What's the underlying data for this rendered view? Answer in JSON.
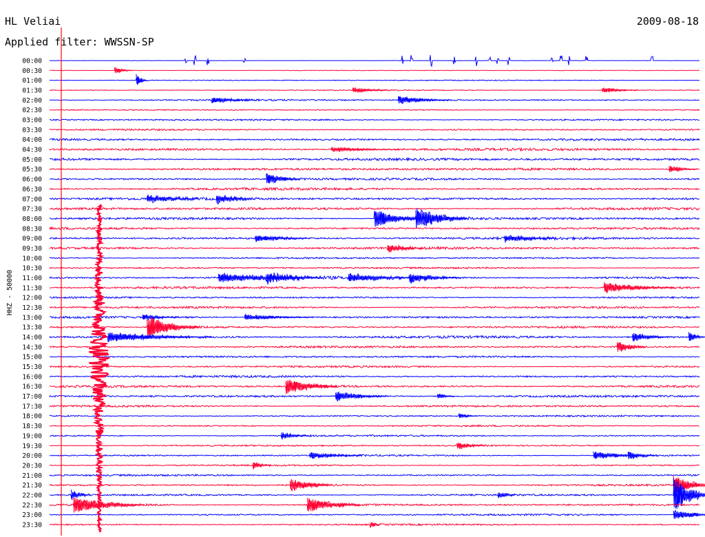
{
  "header": {
    "station": "HL Veliai",
    "date": "2009-08-18",
    "filter_label": "Applied filter: WWSSN-SP"
  },
  "colors": {
    "blue": "#0000ff",
    "red": "#ff0033",
    "marker": "#ff0000",
    "text": "#000000"
  },
  "chart_data": {
    "type": "line",
    "ylabel": "HHZ - 50000",
    "xlabel": "",
    "title": "",
    "rows": [
      "00:00",
      "00:30",
      "01:00",
      "01:30",
      "02:00",
      "02:30",
      "03:00",
      "03:30",
      "04:00",
      "04:30",
      "05:00",
      "05:30",
      "06:00",
      "06:30",
      "07:00",
      "07:30",
      "08:00",
      "08:30",
      "09:00",
      "09:30",
      "10:00",
      "10:30",
      "11:00",
      "11:30",
      "12:00",
      "12:30",
      "13:00",
      "13:30",
      "14:00",
      "14:30",
      "15:00",
      "15:30",
      "16:00",
      "16:30",
      "17:00",
      "17:30",
      "18:00",
      "18:30",
      "19:00",
      "19:30",
      "20:00",
      "20:30",
      "21:00",
      "21:30",
      "22:00",
      "22:30",
      "23:00",
      "23:30"
    ],
    "row_colors": [
      "blue",
      "red"
    ],
    "minutes_per_row": 30,
    "noise_levels": [
      0.2,
      0.4,
      0.6,
      0.6,
      1.0,
      0.7,
      1.0,
      1.0,
      1.3,
      1.6,
      1.6,
      1.6,
      1.3,
      1.5,
      1.6,
      1.6,
      1.4,
      1.4,
      1.5,
      1.5,
      1.1,
      1.1,
      1.5,
      1.4,
      1.1,
      1.4,
      1.3,
      1.3,
      1.5,
      1.3,
      1.2,
      1.2,
      1.3,
      1.4,
      1.3,
      1.3,
      1.0,
      1.0,
      1.0,
      1.0,
      1.0,
      0.9,
      1.1,
      1.1,
      1.1,
      1.2,
      1.1,
      1.0
    ],
    "events": [
      {
        "row": 1,
        "t": 3,
        "amp": 5,
        "len": 0.5
      },
      {
        "row": 2,
        "t": 4,
        "amp": 10,
        "len": 0.3
      },
      {
        "row": 3,
        "t": 14,
        "amp": 4,
        "len": 1
      },
      {
        "row": 3,
        "t": 25.5,
        "amp": 4,
        "len": 1
      },
      {
        "row": 4,
        "t": 7.5,
        "amp": 4,
        "len": 1.2
      },
      {
        "row": 4,
        "t": 16.1,
        "amp": 6,
        "len": 1.5
      },
      {
        "row": 9,
        "t": 13,
        "amp": 3,
        "len": 2
      },
      {
        "row": 11,
        "t": 28.6,
        "amp": 5,
        "len": 0.8
      },
      {
        "row": 12,
        "t": 10,
        "amp": 8,
        "len": 1
      },
      {
        "row": 14,
        "t": 4.5,
        "amp": 5,
        "len": 1.5
      },
      {
        "row": 14,
        "t": 7.7,
        "amp": 7,
        "len": 1
      },
      {
        "row": 16,
        "t": 15,
        "amp": 14,
        "len": 1.5
      },
      {
        "row": 16,
        "t": 16.9,
        "amp": 17,
        "len": 1.5
      },
      {
        "row": 18,
        "t": 9.5,
        "amp": 5,
        "len": 1.5
      },
      {
        "row": 18,
        "t": 21,
        "amp": 5,
        "len": 1.5
      },
      {
        "row": 19,
        "t": 15.6,
        "amp": 5,
        "len": 1
      },
      {
        "row": 22,
        "t": 7.8,
        "amp": 6,
        "len": 3
      },
      {
        "row": 22,
        "t": 10,
        "amp": 7,
        "len": 1.5
      },
      {
        "row": 22,
        "t": 13.8,
        "amp": 6,
        "len": 2
      },
      {
        "row": 22,
        "t": 16.6,
        "amp": 7,
        "len": 1.5
      },
      {
        "row": 23,
        "t": 25.6,
        "amp": 8,
        "len": 2
      },
      {
        "row": 26,
        "t": 4.3,
        "amp": 4,
        "len": 1
      },
      {
        "row": 26,
        "t": 9,
        "amp": 4,
        "len": 2
      },
      {
        "row": 27,
        "t": 4.5,
        "amp": 18,
        "len": 1.5
      },
      {
        "row": 28,
        "t": 2.7,
        "amp": 7,
        "len": 3
      },
      {
        "row": 28,
        "t": 26.9,
        "amp": 7,
        "len": 1
      },
      {
        "row": 28,
        "t": 29.5,
        "amp": 8,
        "len": 0.5
      },
      {
        "row": 29,
        "t": 26.2,
        "amp": 8,
        "len": 0.8
      },
      {
        "row": 33,
        "t": 10.9,
        "amp": 12,
        "len": 1.5
      },
      {
        "row": 34,
        "t": 13.2,
        "amp": 7,
        "len": 1.5
      },
      {
        "row": 34,
        "t": 17.9,
        "amp": 5,
        "len": 0.5
      },
      {
        "row": 36,
        "t": 18.9,
        "amp": 4,
        "len": 0.5
      },
      {
        "row": 38,
        "t": 10.7,
        "amp": 5,
        "len": 0.8
      },
      {
        "row": 39,
        "t": 18.8,
        "amp": 5,
        "len": 0.8
      },
      {
        "row": 40,
        "t": 12,
        "amp": 5,
        "len": 1.5
      },
      {
        "row": 40,
        "t": 25.1,
        "amp": 6,
        "len": 1.5
      },
      {
        "row": 40,
        "t": 26.7,
        "amp": 6,
        "len": 0.8
      },
      {
        "row": 41,
        "t": 9.4,
        "amp": 5,
        "len": 0.5
      },
      {
        "row": 43,
        "t": 11.1,
        "amp": 10,
        "len": 1.2
      },
      {
        "row": 43,
        "t": 28.8,
        "amp": 14,
        "len": 1.2
      },
      {
        "row": 44,
        "t": 1,
        "amp": 8,
        "len": 0.5
      },
      {
        "row": 44,
        "t": 20.7,
        "amp": 5,
        "len": 0.5
      },
      {
        "row": 44,
        "t": 28.8,
        "amp": 26,
        "len": 1.2
      },
      {
        "row": 45,
        "t": 1.1,
        "amp": 12,
        "len": 2
      },
      {
        "row": 45,
        "t": 11.9,
        "amp": 12,
        "len": 1.5
      },
      {
        "row": 46,
        "t": 28.8,
        "amp": 8,
        "len": 1.2
      },
      {
        "row": 47,
        "t": 14.8,
        "amp": 4,
        "len": 0.3
      }
    ],
    "row0_spikes": [
      6.3,
      6.7,
      7.3,
      9,
      16.3,
      16.7,
      17.6,
      18.7,
      19.7,
      20.3,
      20.7,
      21.2,
      23.2,
      23.6,
      24,
      24.8,
      27.8
    ],
    "big_quake": {
      "t": 2.3,
      "start_row": 15,
      "end_row": 48,
      "center_row": 30
    }
  }
}
